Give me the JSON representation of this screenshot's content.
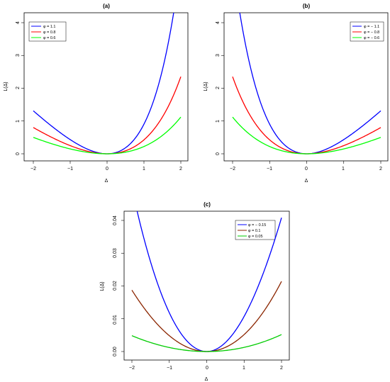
{
  "chart_data": [
    {
      "type": "line",
      "title": "(a)",
      "xlabel": "Δ",
      "ylabel": "L(Δ)",
      "xlim": [
        -2,
        2
      ],
      "ylim": [
        0,
        4
      ],
      "x_ticks": [
        "−2",
        "−1",
        "0",
        "1",
        "2"
      ],
      "y_ticks": [
        "0",
        "1",
        "2",
        "3",
        "4"
      ],
      "legend_position": "top-left",
      "series": [
        {
          "name": "φ = 1.1",
          "color": "#0000ff",
          "phi": 1.1
        },
        {
          "name": "φ = 0.8",
          "color": "#ff0000",
          "phi": 0.8
        },
        {
          "name": "φ = 0.6",
          "color": "#00ff00",
          "phi": 0.6
        }
      ]
    },
    {
      "type": "line",
      "title": "(b)",
      "xlabel": "Δ",
      "ylabel": "L(Δ)",
      "xlim": [
        -2,
        2
      ],
      "ylim": [
        0,
        4
      ],
      "x_ticks": [
        "−2",
        "−1",
        "0",
        "1",
        "2"
      ],
      "y_ticks": [
        "0",
        "1",
        "2",
        "3",
        "4"
      ],
      "legend_position": "top-right",
      "series": [
        {
          "name": "φ = − 1.1",
          "color": "#0000ff",
          "phi": -1.1
        },
        {
          "name": "φ = − 0.8",
          "color": "#ff0000",
          "phi": -0.8
        },
        {
          "name": "φ = − 0.6",
          "color": "#00ff00",
          "phi": -0.6
        }
      ]
    },
    {
      "type": "line",
      "title": "(c)",
      "xlabel": "Δ",
      "ylabel": "L(Δ)",
      "xlim": [
        -2,
        2
      ],
      "ylim": [
        0,
        0.04
      ],
      "x_ticks": [
        "−2",
        "−1",
        "0",
        "1",
        "2"
      ],
      "y_ticks": [
        "0.00",
        "0.01",
        "0.02",
        "0.03",
        "0.04"
      ],
      "legend_position": "top-right",
      "series": [
        {
          "name": "φ = − 0.15",
          "color": "#0000ff",
          "phi": -0.15
        },
        {
          "name": "φ = 0.1",
          "color": "#8b2500",
          "phi": 0.1
        },
        {
          "name": "φ = 0.05",
          "color": "#00cc00",
          "phi": 0.05
        }
      ]
    }
  ]
}
